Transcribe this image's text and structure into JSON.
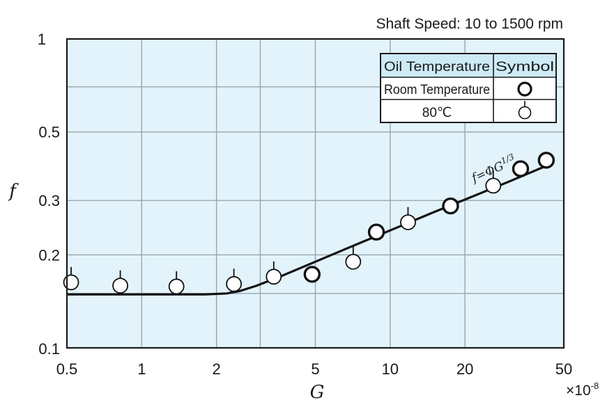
{
  "chart_data": {
    "type": "scatter",
    "annotation": "Shaft Speed: 10 to 1500 rpm",
    "xlabel": "G",
    "ylabel": "f",
    "x_unit": "×10",
    "x_unit_exp": "-8",
    "x_scale": "log",
    "y_scale": "log",
    "xlim": [
      0.5,
      50
    ],
    "ylim": [
      0.1,
      1
    ],
    "x_ticks": [
      {
        "value": 0.5,
        "label": "0.5"
      },
      {
        "value": 1,
        "label": "1"
      },
      {
        "value": 2,
        "label": "2"
      },
      {
        "value": 5,
        "label": "5"
      },
      {
        "value": 10,
        "label": "10"
      },
      {
        "value": 20,
        "label": "20"
      },
      {
        "value": 50,
        "label": "50"
      }
    ],
    "y_ticks": [
      {
        "value": 0.1,
        "label": "0.1"
      },
      {
        "value": 0.2,
        "label": "0.2"
      },
      {
        "value": 0.3,
        "label": "0.3"
      },
      {
        "value": 0.5,
        "label": "0.5"
      },
      {
        "value": 1,
        "label": "1"
      }
    ],
    "x_grid": [
      0.5,
      1,
      2,
      3,
      5,
      10,
      20,
      50
    ],
    "y_grid": [
      0.1,
      0.15,
      0.2,
      0.3,
      0.5,
      0.7,
      1
    ],
    "grid": true,
    "legend": {
      "position": "top-right",
      "header": [
        "Oil Temperature",
        "Symbol"
      ],
      "rows": [
        "Room Temperature",
        "80℃"
      ]
    },
    "series": [
      {
        "marker": "open-circle-bold",
        "points": [
          [
            4.85,
            0.173
          ],
          [
            8.8,
            0.237
          ],
          [
            17.5,
            0.288
          ],
          [
            33.5,
            0.38
          ],
          [
            42.5,
            0.405
          ]
        ]
      },
      {
        "marker": "open-circle-tick",
        "points": [
          [
            0.52,
            0.163
          ],
          [
            0.82,
            0.159
          ],
          [
            1.38,
            0.158
          ],
          [
            2.35,
            0.161
          ],
          [
            3.4,
            0.17
          ],
          [
            7.1,
            0.19
          ],
          [
            11.8,
            0.255
          ],
          [
            26,
            0.335
          ]
        ]
      }
    ],
    "curve": {
      "label": "f=ΦG",
      "label_exp": "1/3",
      "points": [
        [
          0.5,
          0.149
        ],
        [
          0.8,
          0.149
        ],
        [
          1.2,
          0.149
        ],
        [
          1.8,
          0.149
        ],
        [
          2.2,
          0.15
        ],
        [
          2.5,
          0.153
        ],
        [
          2.9,
          0.159
        ],
        [
          3.6,
          0.17
        ],
        [
          5,
          0.19
        ],
        [
          7,
          0.213
        ],
        [
          10,
          0.24
        ],
        [
          15,
          0.275
        ],
        [
          20,
          0.302
        ],
        [
          30,
          0.345
        ],
        [
          43,
          0.39
        ]
      ]
    },
    "colors": {
      "plot_background": "#e2f3fb",
      "grid": "#9aa3ab",
      "axis": "#1a1a1a",
      "legend_header_bg": "#cdeaf7"
    }
  }
}
